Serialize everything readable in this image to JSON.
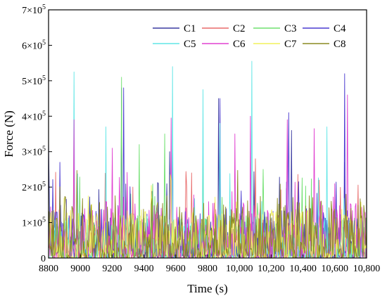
{
  "chart_data": {
    "type": "line",
    "xlabel": "Time (s)",
    "ylabel": "Force (N)",
    "xlim": [
      8800,
      10800
    ],
    "ylim": [
      0,
      700000
    ],
    "x_ticks": [
      {
        "value": 8800,
        "label": "8800"
      },
      {
        "value": 9000,
        "label": "9000"
      },
      {
        "value": 9200,
        "label": "9200"
      },
      {
        "value": 9400,
        "label": "9400"
      },
      {
        "value": 9600,
        "label": "9600"
      },
      {
        "value": 9800,
        "label": "9800"
      },
      {
        "value": 10000,
        "label": "10,000"
      },
      {
        "value": 10200,
        "label": "10,200"
      },
      {
        "value": 10400,
        "label": "10,400"
      },
      {
        "value": 10600,
        "label": "10,600"
      },
      {
        "value": 10800,
        "label": "10,800"
      }
    ],
    "y_ticks": [
      {
        "value": 0,
        "mant": "0",
        "exp": ""
      },
      {
        "value": 100000,
        "mant": "1×10",
        "exp": "5"
      },
      {
        "value": 200000,
        "mant": "2×10",
        "exp": "5"
      },
      {
        "value": 300000,
        "mant": "3×10",
        "exp": "5"
      },
      {
        "value": 400000,
        "mant": "4×10",
        "exp": "5"
      },
      {
        "value": 500000,
        "mant": "5×10",
        "exp": "5"
      },
      {
        "value": 600000,
        "mant": "6×10",
        "exp": "5"
      },
      {
        "value": 700000,
        "mant": "7×10",
        "exp": "5"
      }
    ],
    "legend_position": "top-right",
    "grid": false,
    "series": [
      {
        "name": "C1",
        "color": "#3a3aa0",
        "peaks": [
          [
            8800,
            330000
          ],
          [
            9260,
            480000
          ],
          [
            9560,
            300000
          ],
          [
            9870,
            450000
          ],
          [
            10330,
            360000
          ],
          [
            10660,
            270000
          ]
        ]
      },
      {
        "name": "C2",
        "color": "#e86a6a",
        "peaks": [
          [
            8960,
            250000
          ],
          [
            9330,
            200000
          ],
          [
            9700,
            240000
          ],
          [
            10100,
            280000
          ],
          [
            10500,
            220000
          ]
        ]
      },
      {
        "name": "C3",
        "color": "#6ee06e",
        "peaks": [
          [
            9260,
            510000
          ],
          [
            9370,
            320000
          ],
          [
            9530,
            350000
          ],
          [
            9770,
            300000
          ],
          [
            10150,
            250000
          ]
        ]
      },
      {
        "name": "C4",
        "color": "#4a3ad0",
        "peaks": [
          [
            8870,
            270000
          ],
          [
            9270,
            480000
          ],
          [
            9580,
            390000
          ],
          [
            9880,
            450000
          ],
          [
            10310,
            410000
          ],
          [
            10660,
            520000
          ]
        ]
      },
      {
        "name": "C5",
        "color": "#60e6e6",
        "peaks": [
          [
            8960,
            525000
          ],
          [
            9160,
            370000
          ],
          [
            9580,
            540000
          ],
          [
            9770,
            475000
          ],
          [
            9880,
            380000
          ],
          [
            10080,
            555000
          ],
          [
            10550,
            370000
          ]
        ]
      },
      {
        "name": "C6",
        "color": "#e040d0",
        "peaks": [
          [
            8960,
            390000
          ],
          [
            9200,
            310000
          ],
          [
            9570,
            395000
          ],
          [
            9970,
            350000
          ],
          [
            10070,
            400000
          ],
          [
            10300,
            390000
          ],
          [
            10470,
            365000
          ],
          [
            10680,
            460000
          ]
        ]
      },
      {
        "name": "C7",
        "color": "#f2f25a",
        "peaks": [
          [
            9100,
            100000
          ],
          [
            9600,
            110000
          ],
          [
            10200,
            120000
          ],
          [
            10600,
            110000
          ]
        ]
      },
      {
        "name": "C8",
        "color": "#8a8a20",
        "peaks": [
          [
            8950,
            140000
          ],
          [
            9500,
            120000
          ],
          [
            9900,
            150000
          ],
          [
            10400,
            130000
          ],
          [
            10700,
            140000
          ]
        ]
      }
    ]
  }
}
